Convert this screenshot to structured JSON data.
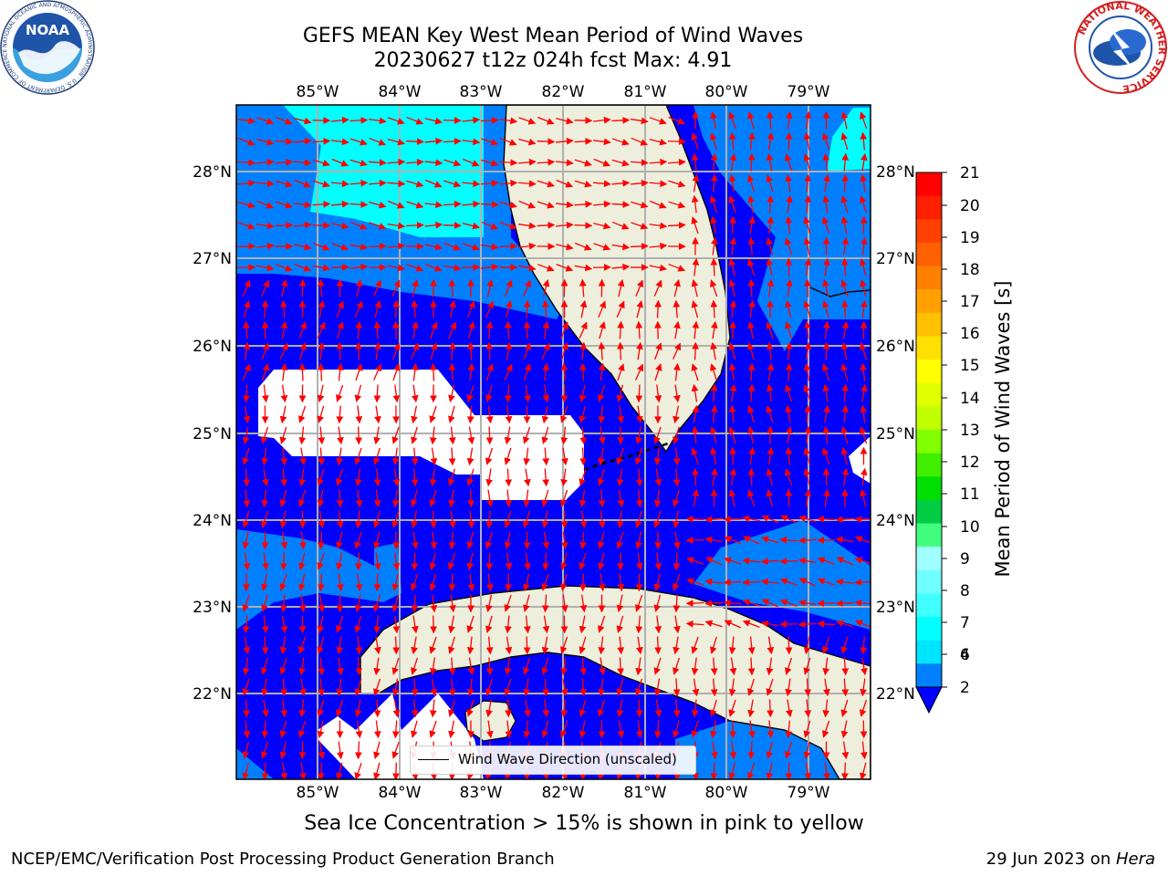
{
  "title": {
    "line1": "GEFS MEAN Key West Mean Period of Wind Waves",
    "line2": "20230627 t12z 024h fcst   Max: 4.91"
  },
  "logos": {
    "noaa": {
      "text": "NOAA",
      "ring": "NATIONAL OCEANIC AND ATMOSPHERIC ADMINISTRATION · U.S. DEPARTMENT OF COMMERCE"
    },
    "nws": {
      "ring": "NATIONAL WEATHER SERVICE"
    }
  },
  "map": {
    "lon_labels": [
      "85°W",
      "84°W",
      "83°W",
      "82°W",
      "81°W",
      "80°W",
      "79°W"
    ],
    "lat_labels": [
      "28°N",
      "27°N",
      "26°N",
      "25°N",
      "24°N",
      "23°N",
      "22°N"
    ],
    "legend": "Wind Wave Direction (unscaled)",
    "colors": {
      "land": "#eeeedd",
      "ocean_2_4": "#0000ff",
      "ocean_4_6_mid": "#0080ff",
      "ocean_6_8": "#00ffff",
      "missing": "#ffffff",
      "arrows": "#ff0000",
      "grid": "#b0b0b0"
    }
  },
  "colorbar": {
    "label": "Mean Period of Wind Waves [s]",
    "ticks": [
      "21",
      "20",
      "19",
      "18",
      "17",
      "16",
      "15",
      "14",
      "13",
      "12",
      "11",
      "10",
      "9",
      "8",
      "7",
      "6",
      "4",
      "2"
    ],
    "colors_top_down": [
      "#ff0000",
      "#ff2000",
      "#ff4000",
      "#ff6000",
      "#ff8000",
      "#ffa000",
      "#ffc000",
      "#ffe000",
      "#ffff00",
      "#e0ff00",
      "#c0ff00",
      "#80ff00",
      "#40ee00",
      "#00e000",
      "#00cc44",
      "#40ff80",
      "#a0ffff",
      "#70ffff",
      "#40ffff",
      "#00ffff",
      "#00e5ff",
      "#0080ff"
    ],
    "extend_color": "#0000ff"
  },
  "notes": {
    "sea_ice": "Sea Ice Concentration > 15% is shown in pink to yellow",
    "footer_left": "NCEP/EMC/Verification Post Processing Product Generation Branch",
    "footer_right_prefix": "29 Jun 2023 on ",
    "footer_right_host": "Hera"
  }
}
